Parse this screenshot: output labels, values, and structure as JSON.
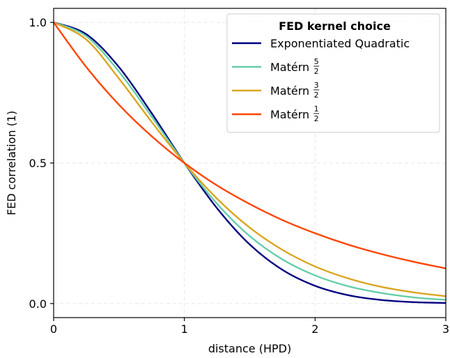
{
  "chart_data": {
    "type": "line",
    "title": "",
    "xlabel": "distance (HPD)",
    "ylabel": "FED correlation (1)",
    "xlim": [
      0,
      3
    ],
    "ylim": [
      -0.05,
      1.05
    ],
    "grid": true,
    "x_ticks": [
      {
        "value": 0,
        "label": "0"
      },
      {
        "value": 1,
        "label": "1"
      },
      {
        "value": 2,
        "label": "2"
      },
      {
        "value": 3,
        "label": "3"
      }
    ],
    "y_ticks": [
      {
        "value": 0,
        "label": "0.0"
      },
      {
        "value": 0.5,
        "label": "0.5"
      },
      {
        "value": 1,
        "label": "1.0"
      }
    ],
    "legend": {
      "title": "FED kernel choice",
      "placement": "top-right"
    },
    "x": [
      0,
      0.25,
      0.5,
      0.75,
      1,
      1.25,
      1.5,
      1.75,
      2,
      2.25,
      2.5,
      2.75,
      3
    ],
    "series": [
      {
        "name": "Exponentiated Quadratic",
        "color": "#000080",
        "values": [
          1.0,
          0.958,
          0.841,
          0.677,
          0.5,
          0.339,
          0.21,
          0.12,
          0.063,
          0.03,
          0.013,
          0.005,
          0.002
        ]
      },
      {
        "name_prefix": "Matérn",
        "frac_num": "5",
        "frac_den": "2",
        "color": "#66cdaa",
        "values": [
          1.0,
          0.951,
          0.825,
          0.665,
          0.5,
          0.355,
          0.24,
          0.157,
          0.1,
          0.062,
          0.038,
          0.022,
          0.013
        ]
      },
      {
        "name_prefix": "Matérn",
        "frac_num": "3",
        "frac_den": "2",
        "color": "#daa520",
        "values": [
          1.0,
          0.939,
          0.8,
          0.646,
          0.5,
          0.373,
          0.27,
          0.191,
          0.132,
          0.09,
          0.06,
          0.04,
          0.026
        ]
      },
      {
        "name_prefix": "Matérn",
        "frac_num": "1",
        "frac_den": "2",
        "color": "#ff4500",
        "values": [
          1.0,
          0.841,
          0.707,
          0.595,
          0.5,
          0.42,
          0.354,
          0.297,
          0.25,
          0.21,
          0.177,
          0.149,
          0.125
        ]
      }
    ]
  }
}
